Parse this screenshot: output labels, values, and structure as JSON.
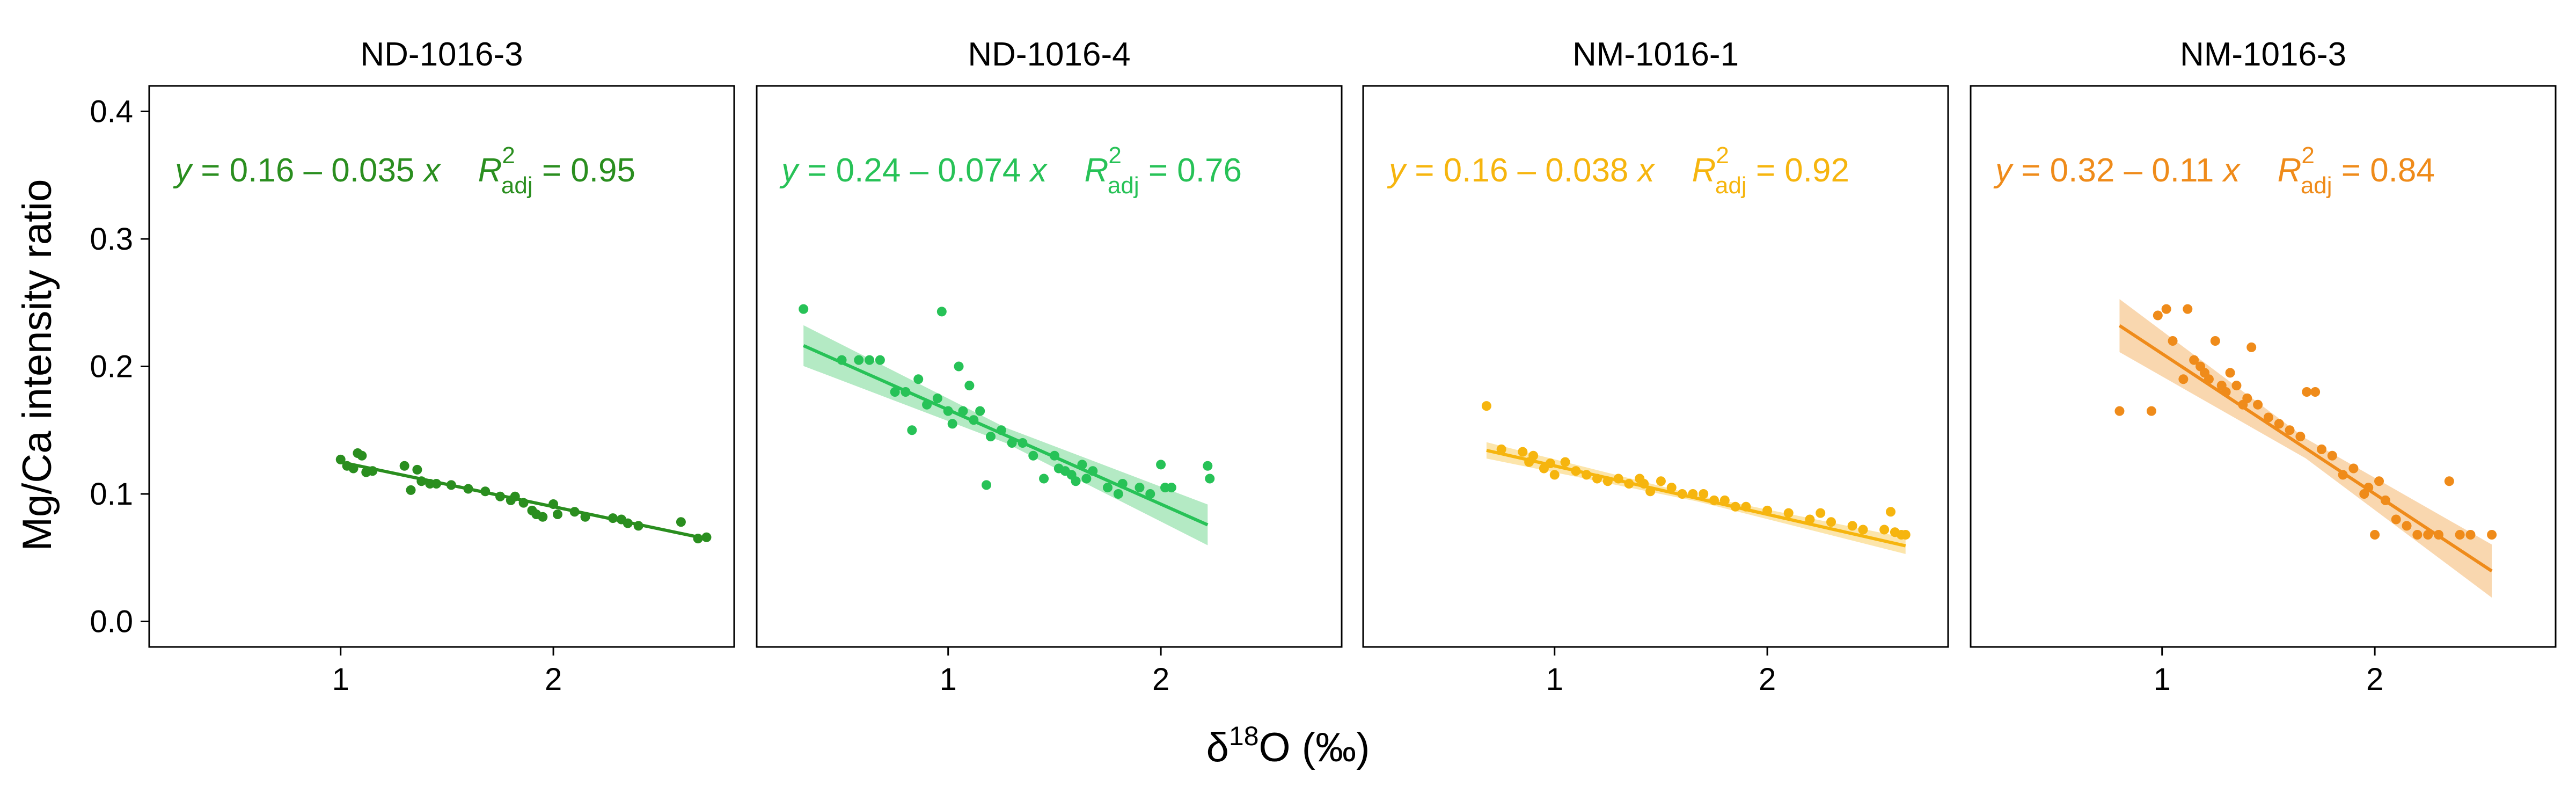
{
  "figure": {
    "ylabel": "Mg/Ca intensity ratio",
    "xlabel_prefix": "δ",
    "xlabel_sup": "18",
    "xlabel_suffix": "O (‰)",
    "xlim": [
      0.1,
      2.85
    ],
    "ylim": [
      -0.02,
      0.42
    ],
    "yticks": [
      0.0,
      0.1,
      0.2,
      0.3,
      0.4
    ],
    "ytick_labels": [
      "0.0",
      "0.1",
      "0.2",
      "0.3",
      "0.4"
    ],
    "xticks": [
      1,
      2
    ],
    "xtick_labels": [
      "1",
      "2"
    ],
    "grid": false
  },
  "chart_data": [
    {
      "type": "scatter",
      "title": "ND-1016-3",
      "color": "#2a8e1f",
      "equation": {
        "y_text": "y",
        "body": " = 0.16 – 0.035 ",
        "x_text": "x",
        "r_text": "R",
        "r_sup": "2",
        "r_sub": "adj",
        "r_value": " = 0.95"
      },
      "fit": {
        "intercept": 0.16,
        "slope": -0.035,
        "x_range": [
          1.0,
          2.72
        ]
      },
      "band_halfwidth": 0.0,
      "points": [
        [
          1.0,
          0.127
        ],
        [
          1.03,
          0.122
        ],
        [
          1.06,
          0.12
        ],
        [
          1.08,
          0.132
        ],
        [
          1.1,
          0.13
        ],
        [
          1.12,
          0.117
        ],
        [
          1.15,
          0.118
        ],
        [
          1.3,
          0.122
        ],
        [
          1.33,
          0.103
        ],
        [
          1.36,
          0.119
        ],
        [
          1.38,
          0.11
        ],
        [
          1.42,
          0.108
        ],
        [
          1.45,
          0.108
        ],
        [
          1.52,
          0.107
        ],
        [
          1.6,
          0.104
        ],
        [
          1.68,
          0.102
        ],
        [
          1.75,
          0.098
        ],
        [
          1.8,
          0.095
        ],
        [
          1.82,
          0.098
        ],
        [
          1.86,
          0.093
        ],
        [
          1.9,
          0.087
        ],
        [
          1.92,
          0.084
        ],
        [
          1.95,
          0.082
        ],
        [
          2.0,
          0.092
        ],
        [
          2.02,
          0.084
        ],
        [
          2.1,
          0.086
        ],
        [
          2.15,
          0.082
        ],
        [
          2.28,
          0.081
        ],
        [
          2.32,
          0.08
        ],
        [
          2.35,
          0.077
        ],
        [
          2.4,
          0.075
        ],
        [
          2.6,
          0.078
        ],
        [
          2.68,
          0.065
        ],
        [
          2.72,
          0.066
        ]
      ]
    },
    {
      "type": "scatter",
      "title": "ND-1016-4",
      "color": "#27c257",
      "equation": {
        "y_text": "y",
        "body": " = 0.24 – 0.074 ",
        "x_text": "x",
        "r_text": "R",
        "r_sup": "2",
        "r_sub": "adj",
        "r_value": " = 0.76"
      },
      "fit": {
        "intercept": 0.24,
        "slope": -0.074,
        "x_range": [
          0.32,
          2.22
        ]
      },
      "band_halfwidth": 0.01,
      "points": [
        [
          0.32,
          0.245
        ],
        [
          0.5,
          0.205
        ],
        [
          0.58,
          0.205
        ],
        [
          0.63,
          0.205
        ],
        [
          0.68,
          0.205
        ],
        [
          0.75,
          0.18
        ],
        [
          0.8,
          0.18
        ],
        [
          0.83,
          0.15
        ],
        [
          0.86,
          0.19
        ],
        [
          0.9,
          0.17
        ],
        [
          0.95,
          0.175
        ],
        [
          0.97,
          0.243
        ],
        [
          1.0,
          0.165
        ],
        [
          1.02,
          0.155
        ],
        [
          1.05,
          0.2
        ],
        [
          1.07,
          0.165
        ],
        [
          1.1,
          0.185
        ],
        [
          1.12,
          0.158
        ],
        [
          1.15,
          0.165
        ],
        [
          1.18,
          0.107
        ],
        [
          1.2,
          0.145
        ],
        [
          1.25,
          0.15
        ],
        [
          1.3,
          0.14
        ],
        [
          1.35,
          0.14
        ],
        [
          1.4,
          0.13
        ],
        [
          1.45,
          0.112
        ],
        [
          1.5,
          0.13
        ],
        [
          1.52,
          0.12
        ],
        [
          1.55,
          0.118
        ],
        [
          1.58,
          0.115
        ],
        [
          1.6,
          0.11
        ],
        [
          1.63,
          0.123
        ],
        [
          1.65,
          0.112
        ],
        [
          1.68,
          0.118
        ],
        [
          1.75,
          0.105
        ],
        [
          1.8,
          0.1
        ],
        [
          1.82,
          0.108
        ],
        [
          1.9,
          0.105
        ],
        [
          1.95,
          0.1
        ],
        [
          2.0,
          0.123
        ],
        [
          2.02,
          0.105
        ],
        [
          2.05,
          0.105
        ],
        [
          2.22,
          0.122
        ],
        [
          2.23,
          0.112
        ]
      ]
    },
    {
      "type": "scatter",
      "title": "NM-1016-1",
      "color": "#f6b50e",
      "equation": {
        "y_text": "y",
        "body": " = 0.16 – 0.038 ",
        "x_text": "x",
        "r_text": "R",
        "r_sup": "2",
        "r_sub": "adj",
        "r_value": " = 0.92"
      },
      "fit": {
        "intercept": 0.16,
        "slope": -0.038,
        "x_range": [
          0.68,
          2.65
        ]
      },
      "band_halfwidth": 0.004,
      "points": [
        [
          0.68,
          0.169
        ],
        [
          0.75,
          0.135
        ],
        [
          0.85,
          0.133
        ],
        [
          0.88,
          0.125
        ],
        [
          0.9,
          0.13
        ],
        [
          0.95,
          0.12
        ],
        [
          0.98,
          0.124
        ],
        [
          1.0,
          0.115
        ],
        [
          1.05,
          0.125
        ],
        [
          1.1,
          0.118
        ],
        [
          1.15,
          0.115
        ],
        [
          1.2,
          0.112
        ],
        [
          1.25,
          0.11
        ],
        [
          1.3,
          0.112
        ],
        [
          1.35,
          0.108
        ],
        [
          1.4,
          0.112
        ],
        [
          1.42,
          0.108
        ],
        [
          1.45,
          0.102
        ],
        [
          1.5,
          0.11
        ],
        [
          1.55,
          0.105
        ],
        [
          1.6,
          0.1
        ],
        [
          1.65,
          0.1
        ],
        [
          1.7,
          0.1
        ],
        [
          1.75,
          0.095
        ],
        [
          1.8,
          0.095
        ],
        [
          1.85,
          0.09
        ],
        [
          1.9,
          0.09
        ],
        [
          2.0,
          0.087
        ],
        [
          2.1,
          0.085
        ],
        [
          2.2,
          0.08
        ],
        [
          2.25,
          0.085
        ],
        [
          2.3,
          0.078
        ],
        [
          2.4,
          0.075
        ],
        [
          2.45,
          0.072
        ],
        [
          2.55,
          0.072
        ],
        [
          2.58,
          0.086
        ],
        [
          2.6,
          0.07
        ],
        [
          2.63,
          0.068
        ],
        [
          2.65,
          0.068
        ]
      ]
    },
    {
      "type": "scatter",
      "title": "NM-1016-3",
      "color": "#ef8b1a",
      "equation": {
        "y_text": "y",
        "body": " = 0.32 – 0.11 ",
        "x_text": "x",
        "r_text": "R",
        "r_sup": "2",
        "r_sub": "adj",
        "r_value": " = 0.84"
      },
      "fit": {
        "intercept": 0.32,
        "slope": -0.11,
        "x_range": [
          0.8,
          2.55
        ]
      },
      "band_halfwidth": 0.013,
      "points": [
        [
          0.8,
          0.165
        ],
        [
          0.95,
          0.165
        ],
        [
          0.98,
          0.24
        ],
        [
          1.02,
          0.245
        ],
        [
          1.05,
          0.22
        ],
        [
          1.1,
          0.19
        ],
        [
          1.12,
          0.245
        ],
        [
          1.15,
          0.205
        ],
        [
          1.18,
          0.2
        ],
        [
          1.2,
          0.195
        ],
        [
          1.22,
          0.19
        ],
        [
          1.25,
          0.22
        ],
        [
          1.28,
          0.185
        ],
        [
          1.3,
          0.18
        ],
        [
          1.32,
          0.195
        ],
        [
          1.35,
          0.185
        ],
        [
          1.38,
          0.17
        ],
        [
          1.4,
          0.175
        ],
        [
          1.42,
          0.215
        ],
        [
          1.45,
          0.17
        ],
        [
          1.5,
          0.16
        ],
        [
          1.55,
          0.155
        ],
        [
          1.6,
          0.15
        ],
        [
          1.65,
          0.145
        ],
        [
          1.68,
          0.18
        ],
        [
          1.72,
          0.18
        ],
        [
          1.75,
          0.135
        ],
        [
          1.8,
          0.13
        ],
        [
          1.85,
          0.115
        ],
        [
          1.9,
          0.12
        ],
        [
          1.95,
          0.1
        ],
        [
          1.97,
          0.105
        ],
        [
          2.0,
          0.068
        ],
        [
          2.02,
          0.11
        ],
        [
          2.05,
          0.095
        ],
        [
          2.1,
          0.08
        ],
        [
          2.15,
          0.075
        ],
        [
          2.2,
          0.068
        ],
        [
          2.25,
          0.068
        ],
        [
          2.3,
          0.068
        ],
        [
          2.35,
          0.11
        ],
        [
          2.4,
          0.068
        ],
        [
          2.45,
          0.068
        ],
        [
          2.55,
          0.068
        ]
      ]
    }
  ]
}
